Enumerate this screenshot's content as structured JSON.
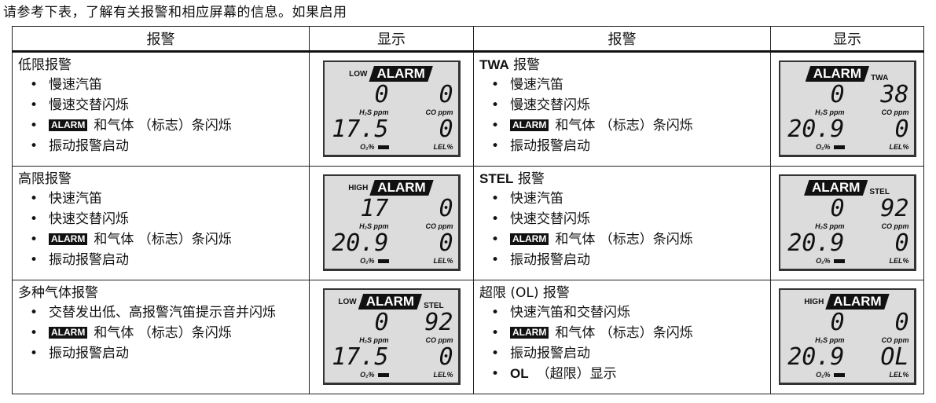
{
  "intro": "请参考下表，了解有关报警和相应屏幕的信息。如果启用",
  "headers": [
    "报警",
    "显示",
    "报警",
    "显示"
  ],
  "lcd_labels": {
    "alarm": "ALARM",
    "h2s": "H₂S ppm",
    "co": "CO ppm",
    "o2": "O₂%",
    "lel": "LEL%"
  },
  "rows": [
    {
      "left": {
        "title_bold": "",
        "title": "低限报警",
        "items": [
          {
            "badge": "",
            "bold": "",
            "text": "慢速汽笛"
          },
          {
            "badge": "",
            "bold": "",
            "text": "慢速交替闪烁"
          },
          {
            "badge": "ALARM",
            "bold": "",
            "text": "和气体 （标志）条闪烁"
          },
          {
            "badge": "",
            "bold": "",
            "text": "振动报警启动"
          }
        ]
      },
      "left_display": {
        "prefix": "LOW",
        "suffix": "",
        "h2s": "0",
        "co": "0",
        "o2": "17.5",
        "lel": "0"
      },
      "right": {
        "title_bold": "TWA",
        "title": " 报警",
        "items": [
          {
            "badge": "",
            "bold": "",
            "text": "慢速汽笛"
          },
          {
            "badge": "",
            "bold": "",
            "text": "慢速交替闪烁"
          },
          {
            "badge": "ALARM",
            "bold": "",
            "text": "和气体 （标志）条闪烁"
          },
          {
            "badge": "",
            "bold": "",
            "text": "振动报警启动"
          }
        ]
      },
      "right_display": {
        "prefix": "",
        "suffix": "TWA",
        "h2s": "0",
        "co": "38",
        "o2": "20.9",
        "lel": "0"
      }
    },
    {
      "left": {
        "title_bold": "",
        "title": "高限报警",
        "items": [
          {
            "badge": "",
            "bold": "",
            "text": "快速汽笛"
          },
          {
            "badge": "",
            "bold": "",
            "text": "快速交替闪烁"
          },
          {
            "badge": "ALARM",
            "bold": "",
            "text": "和气体 （标志）条闪烁"
          },
          {
            "badge": "",
            "bold": "",
            "text": "振动报警启动"
          }
        ]
      },
      "left_display": {
        "prefix": "HIGH",
        "suffix": "",
        "h2s": "17",
        "co": "0",
        "o2": "20.9",
        "lel": "0"
      },
      "right": {
        "title_bold": "STEL",
        "title": " 报警",
        "items": [
          {
            "badge": "",
            "bold": "",
            "text": "快速汽笛"
          },
          {
            "badge": "",
            "bold": "",
            "text": "快速交替闪烁"
          },
          {
            "badge": "ALARM",
            "bold": "",
            "text": "和气体 （标志）条闪烁"
          },
          {
            "badge": "",
            "bold": "",
            "text": "振动报警启动"
          }
        ]
      },
      "right_display": {
        "prefix": "",
        "suffix": "STEL",
        "h2s": "0",
        "co": "92",
        "o2": "20.9",
        "lel": "0"
      }
    },
    {
      "left": {
        "title_bold": "",
        "title": "多种气体报警",
        "items": [
          {
            "badge": "",
            "bold": "",
            "text": "交替发出低、高报警汽笛提示音并闪烁"
          },
          {
            "badge": "ALARM",
            "bold": "",
            "text": "和气体 （标志）条闪烁"
          },
          {
            "badge": "",
            "bold": "",
            "text": "振动报警启动"
          }
        ]
      },
      "left_display": {
        "prefix": "LOW",
        "suffix": "STEL",
        "h2s": "0",
        "co": "92",
        "o2": "17.5",
        "lel": "0"
      },
      "right": {
        "title_bold": "",
        "title": "超限 (OL) 报警",
        "items": [
          {
            "badge": "",
            "bold": "",
            "text": "快速汽笛和交替闪烁"
          },
          {
            "badge": "ALARM",
            "bold": "",
            "text": "和气体 （标志）条闪烁"
          },
          {
            "badge": "",
            "bold": "",
            "text": "振动报警启动"
          },
          {
            "badge": "",
            "bold": "OL",
            "text": "（超限）显示"
          }
        ]
      },
      "right_display": {
        "prefix": "HIGH",
        "suffix": "",
        "h2s": "0",
        "co": "0",
        "o2": "20.9",
        "lel": "OL"
      }
    }
  ]
}
